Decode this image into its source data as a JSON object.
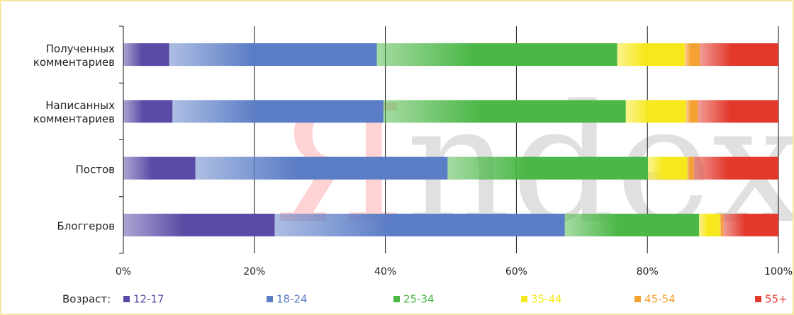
{
  "chart_data": {
    "type": "stacked_hbar",
    "watermark": [
      "Я",
      "ndex"
    ],
    "categories": [
      "Полученных комментариев",
      "Написанных комментариев",
      "Постов",
      "Блоггеров"
    ],
    "legend_title": "Возраст:",
    "series": [
      {
        "name": "12-17",
        "color": "#5a4ba6",
        "values": [
          7.0,
          7.5,
          11.0,
          23.1
        ]
      },
      {
        "name": "18-24",
        "color": "#5b7dc6",
        "values": [
          31.7,
          32.2,
          38.5,
          44.3
        ]
      },
      {
        "name": "25-34",
        "color": "#4bb747",
        "values": [
          36.7,
          37.0,
          30.6,
          20.5
        ]
      },
      {
        "name": "35-44",
        "color": "#f6e81c",
        "values": [
          10.3,
          9.2,
          6.0,
          3.2
        ]
      },
      {
        "name": "45-54",
        "color": "#f5a132",
        "values": [
          2.3,
          1.8,
          1.0,
          0.5
        ]
      },
      {
        "name": "55+",
        "color": "#e2392c",
        "values": [
          12.0,
          12.3,
          12.9,
          8.4
        ]
      }
    ],
    "xlim": [
      0,
      100
    ],
    "xticks": [
      {
        "value": 0,
        "label": "0%"
      },
      {
        "value": 20,
        "label": "20%"
      },
      {
        "value": 40,
        "label": "40%"
      },
      {
        "value": 60,
        "label": "60%"
      },
      {
        "value": 80,
        "label": "80%"
      },
      {
        "value": 100,
        "label": "100%"
      }
    ],
    "grid": true
  }
}
